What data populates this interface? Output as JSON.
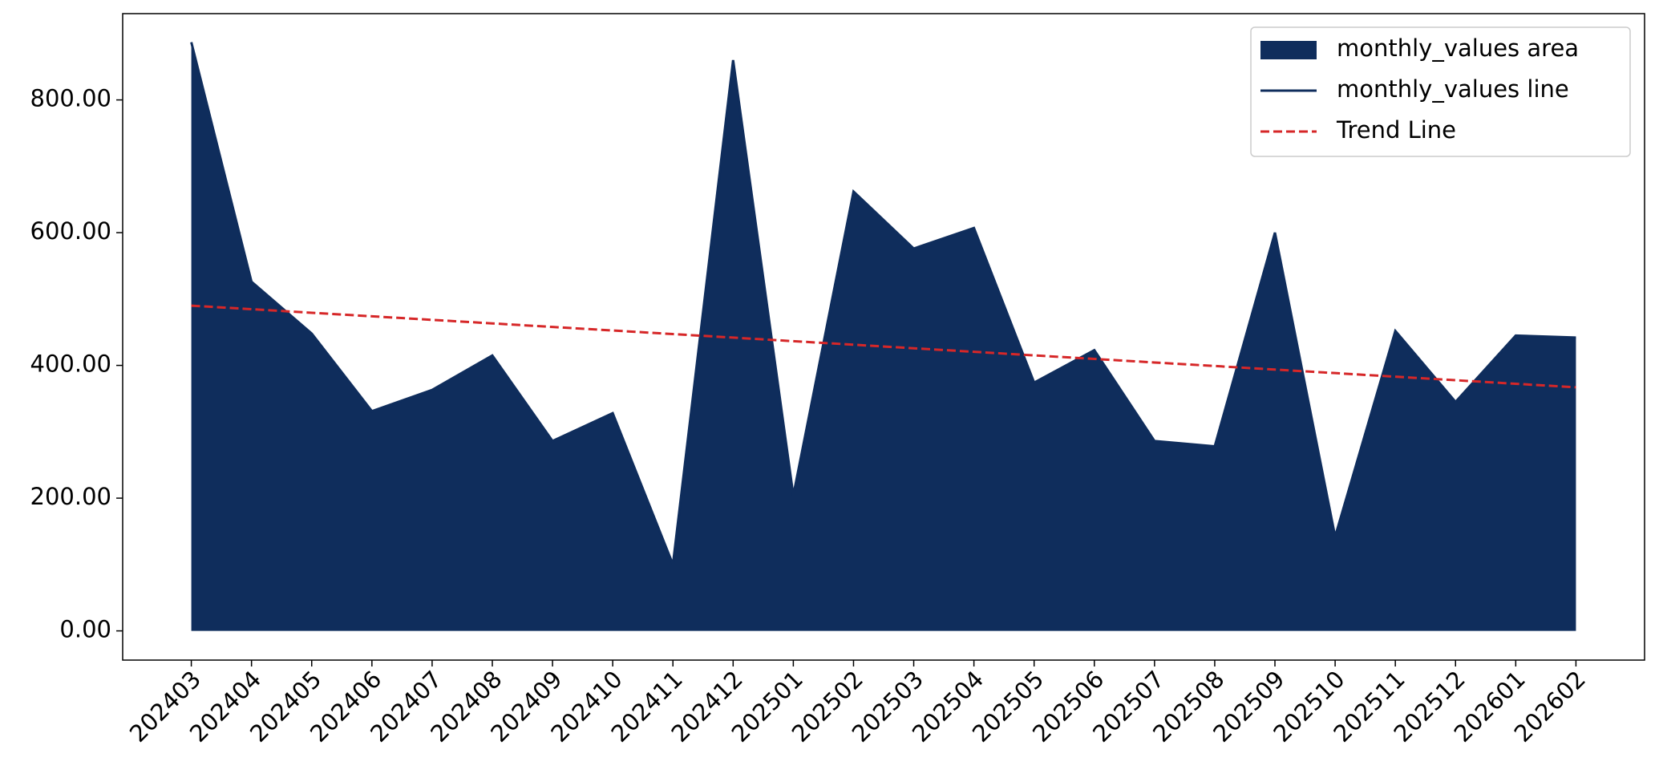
{
  "chart_data": {
    "type": "area",
    "categories": [
      "202403",
      "202404",
      "202405",
      "202406",
      "202407",
      "202408",
      "202409",
      "202410",
      "202411",
      "202412",
      "202501",
      "202502",
      "202503",
      "202504",
      "202505",
      "202506",
      "202507",
      "202508",
      "202509",
      "202510",
      "202511",
      "202512",
      "202601",
      "202602"
    ],
    "series": [
      {
        "name": "monthly_values area",
        "kind": "area",
        "color": "#0f2d5c",
        "values": [
          887,
          526,
          448,
          331,
          363,
          415,
          286,
          328,
          100,
          860,
          204,
          662,
          576,
          607,
          374,
          423,
          286,
          278,
          600,
          142,
          452,
          345,
          445,
          442
        ]
      },
      {
        "name": "monthly_values line",
        "kind": "line",
        "color": "#0f2d5c",
        "values": [
          887,
          526,
          448,
          331,
          363,
          415,
          286,
          328,
          100,
          860,
          204,
          662,
          576,
          607,
          374,
          423,
          286,
          278,
          600,
          142,
          452,
          345,
          445,
          442
        ]
      },
      {
        "name": "Trend Line",
        "kind": "dashed",
        "color": "#d62728",
        "values": [
          490,
          484.7,
          479.3,
          474,
          468.6,
          463.3,
          457.9,
          452.6,
          447.2,
          441.9,
          436.5,
          431.2,
          425.8,
          420.5,
          415.1,
          409.8,
          404.4,
          399.1,
          393.7,
          388.4,
          383,
          377.7,
          372.3,
          367
        ]
      }
    ],
    "ylim": [
      -44,
      930
    ],
    "yticks": [
      {
        "value": 0,
        "label": "0.00"
      },
      {
        "value": 200,
        "label": "200.00"
      },
      {
        "value": 400,
        "label": "400.00"
      },
      {
        "value": 600,
        "label": "600.00"
      },
      {
        "value": 800,
        "label": "800.00"
      }
    ],
    "legend": "upper right"
  }
}
